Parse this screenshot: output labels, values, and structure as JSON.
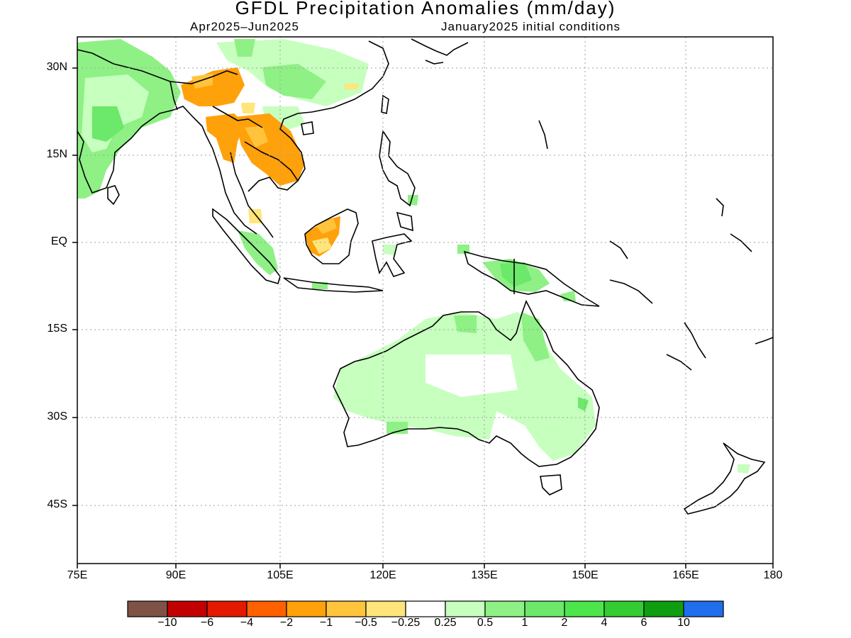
{
  "title": "GFDL Precipitation Anomalies (mm/day)",
  "period": "Apr2025–Jun2025",
  "init": "January2025 initial conditions",
  "y_ticks": [
    "30N",
    "15N",
    "EQ",
    "15S",
    "30S",
    "45S"
  ],
  "x_ticks": [
    "75E",
    "90E",
    "105E",
    "120E",
    "135E",
    "150E",
    "165E",
    "180"
  ],
  "colorbar": {
    "labels": [
      "−10",
      "−6",
      "−4",
      "−2",
      "−1",
      "−0.5",
      "−0.25",
      "0.25",
      "0.5",
      "1",
      "2",
      "4",
      "6",
      "10"
    ],
    "colors": [
      "#7f5248",
      "#c20000",
      "#e31a00",
      "#ff6100",
      "#ffa10a",
      "#ffc43c",
      "#ffe57a",
      "#ffffff",
      "#c6ffbe",
      "#8ff085",
      "#6ce86a",
      "#4ce64c",
      "#33cc33",
      "#0f9e0f",
      "#1f6eeb"
    ]
  },
  "colors": {
    "ocean": "#ffffff",
    "land": "#ffffff",
    "coast": "#000000",
    "grid": "#a0a0a0"
  }
}
